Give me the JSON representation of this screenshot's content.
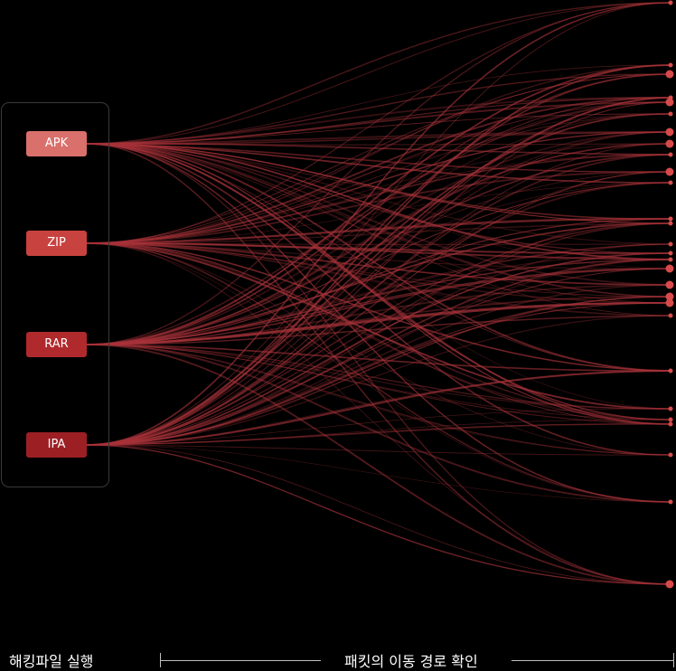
{
  "sources": [
    {
      "label": "APK",
      "color": "#d9706b"
    },
    {
      "label": "ZIP",
      "color": "#c8423f"
    },
    {
      "label": "RAR",
      "color": "#b02a2d"
    },
    {
      "label": "IPA",
      "color": "#9c1f24"
    }
  ],
  "footer": {
    "left_label": "해킹파일 실행",
    "right_label": "패킷의 이동 경로 확인"
  },
  "colors": {
    "background": "#000000",
    "link": "#a8333a",
    "endpoint": "#d64a4a"
  }
}
